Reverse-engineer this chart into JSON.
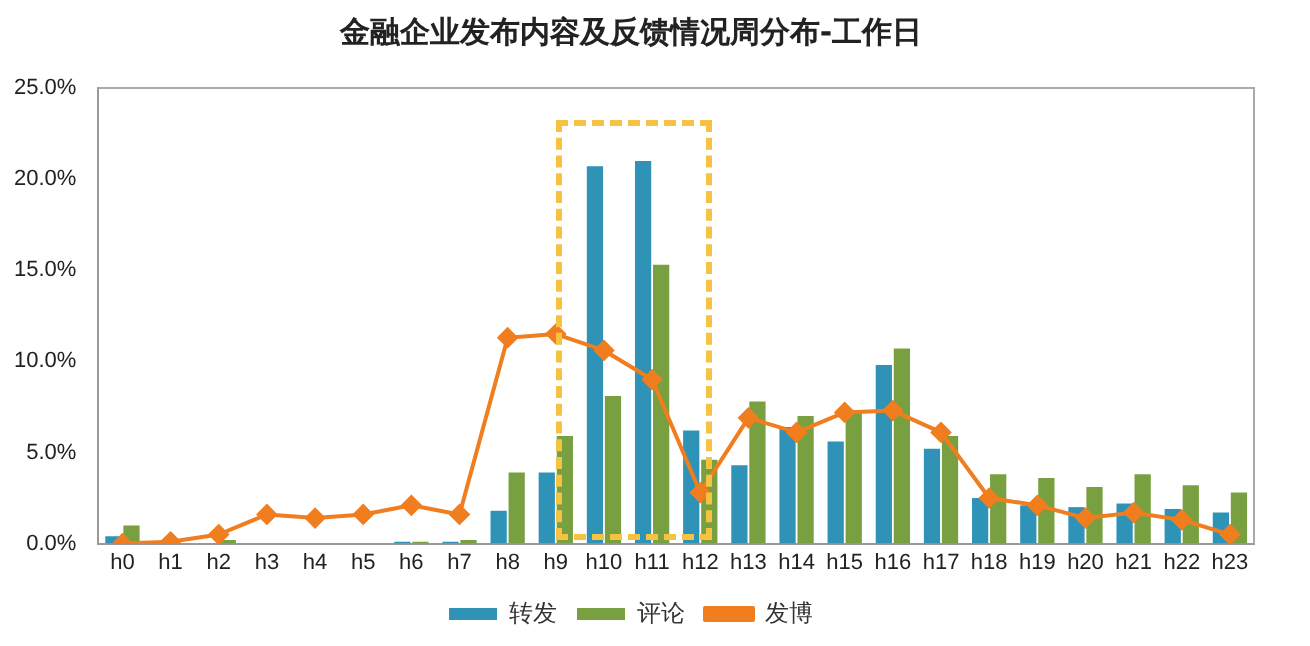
{
  "chart_data": {
    "type": "bar",
    "title": "金融企业发布内容及反馈情况周分布-工作日",
    "categories": [
      "h0",
      "h1",
      "h2",
      "h3",
      "h4",
      "h5",
      "h6",
      "h7",
      "h8",
      "h9",
      "h10",
      "h11",
      "h12",
      "h13",
      "h14",
      "h15",
      "h16",
      "h17",
      "h18",
      "h19",
      "h20",
      "h21",
      "h22",
      "h23"
    ],
    "series": [
      {
        "name": "转发",
        "color": "#2f93b8",
        "values": [
          0.4,
          0,
          0,
          0,
          0,
          0,
          0.1,
          0.1,
          1.8,
          3.9,
          20.7,
          21.0,
          6.2,
          4.3,
          6.4,
          5.6,
          9.8,
          5.2,
          2.5,
          2.1,
          2.0,
          2.2,
          1.9,
          1.7
        ]
      },
      {
        "name": "评论",
        "color": "#78a040",
        "values": [
          1.0,
          0,
          0.2,
          0,
          0,
          0,
          0.1,
          0.2,
          3.9,
          5.9,
          8.1,
          15.3,
          4.6,
          7.8,
          7.0,
          7.2,
          10.7,
          5.9,
          3.8,
          3.6,
          3.1,
          3.8,
          3.2,
          2.8
        ]
      },
      {
        "name": "发博",
        "type": "line",
        "color": "#f07d1e",
        "values": [
          0,
          0.1,
          0.5,
          1.6,
          1.4,
          1.6,
          2.1,
          1.6,
          11.3,
          11.5,
          10.6,
          9.0,
          2.8,
          6.9,
          6.1,
          7.2,
          7.3,
          6.1,
          2.5,
          2.1,
          1.4,
          1.7,
          1.3,
          0.5
        ]
      }
    ],
    "ylim": [
      0,
      25
    ],
    "yticks": [
      {
        "value": 0,
        "label": "0.0%"
      },
      {
        "value": 5,
        "label": "5.0%"
      },
      {
        "value": 10,
        "label": "10.0%"
      },
      {
        "value": 15,
        "label": "15.0%"
      },
      {
        "value": 20,
        "label": "20.0%"
      },
      {
        "value": 25,
        "label": "25.0%"
      }
    ],
    "grid": false,
    "legend": "bottom",
    "marker": "diamond",
    "line_style": "solid"
  }
}
